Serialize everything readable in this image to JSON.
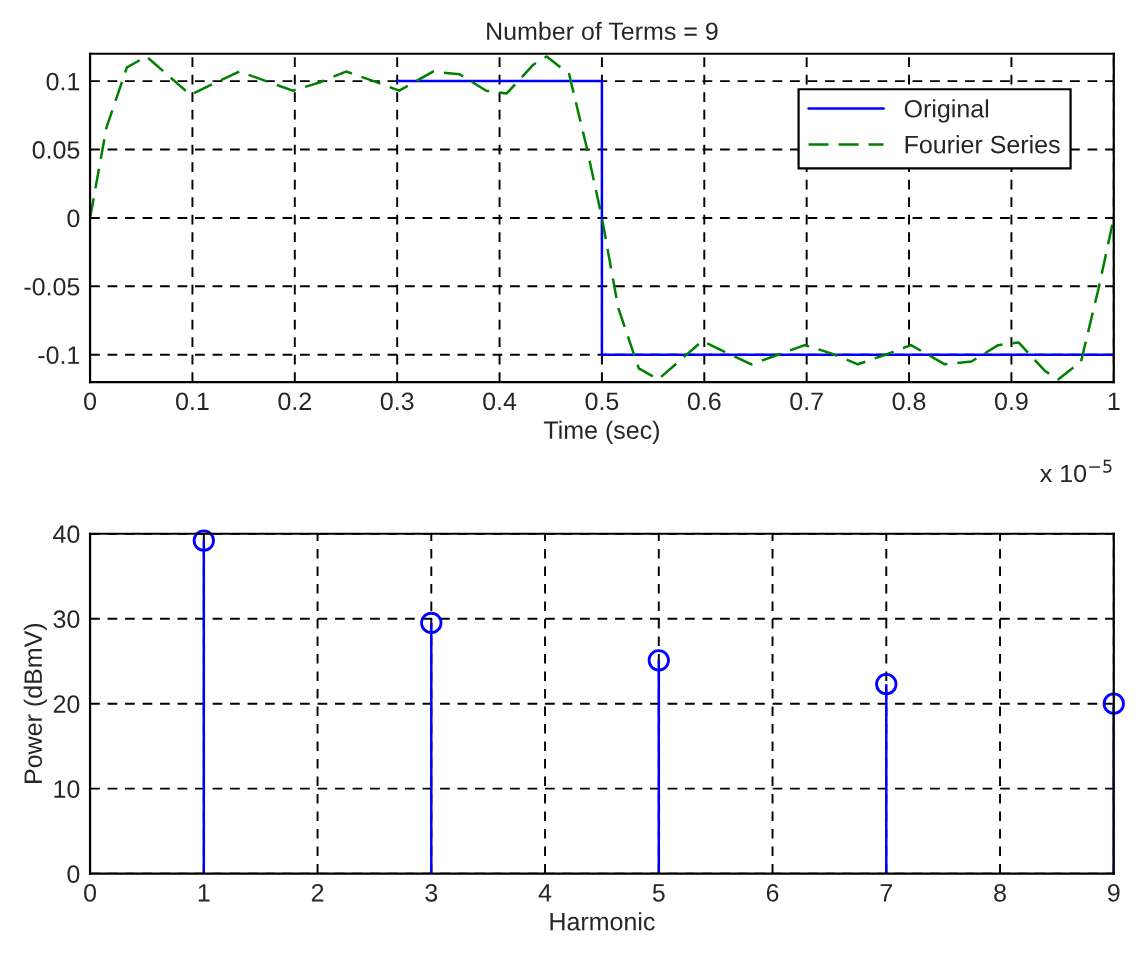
{
  "chart_data": [
    {
      "type": "line",
      "title": "Number of Terms = 9",
      "xlabel": "Time (sec)",
      "xlim": [
        0,
        1
      ],
      "xticks": [
        0,
        0.1,
        0.2,
        0.3,
        0.4,
        0.5,
        0.6,
        0.7,
        0.8,
        0.9,
        1
      ],
      "ylim": [
        -0.12,
        0.12
      ],
      "yticks": [
        -0.1,
        -0.05,
        0,
        0.05,
        0.1
      ],
      "grid": true,
      "legend": "top right",
      "annotations": [
        "x 10$^{−5}$"
      ],
      "series": [
        {
          "name": "Original",
          "color": "#0000ff",
          "line_style": "solid",
          "x": [
            0.3,
            0.5,
            0.5,
            1.0
          ],
          "values": [
            0.1,
            0.1,
            -0.1,
            -0.1
          ]
        },
        {
          "name": "Fourier Series",
          "color": "#008000",
          "line_style": "dashed",
          "x": [
            0,
            0.016,
            0.036,
            0.055,
            0.075,
            0.098,
            0.12,
            0.146,
            0.172,
            0.198,
            0.224,
            0.25,
            0.277,
            0.302,
            0.335,
            0.361,
            0.387,
            0.407,
            0.433,
            0.446,
            0.468,
            0.485,
            0.5,
            0.516,
            0.536,
            0.555,
            0.575,
            0.598,
            0.62,
            0.646,
            0.672,
            0.698,
            0.724,
            0.75,
            0.777,
            0.802,
            0.835,
            0.861,
            0.887,
            0.907,
            0.933,
            0.946,
            0.968,
            0.985,
            1.0
          ],
          "values": [
            0,
            0.066,
            0.11,
            0.118,
            0.105,
            0.09,
            0.098,
            0.107,
            0.1,
            0.093,
            0.099,
            0.107,
            0.1,
            0.093,
            0.107,
            0.105,
            0.093,
            0.091,
            0.112,
            0.118,
            0.105,
            0.052,
            0,
            -0.066,
            -0.11,
            -0.118,
            -0.105,
            -0.09,
            -0.098,
            -0.107,
            -0.1,
            -0.093,
            -0.099,
            -0.107,
            -0.1,
            -0.093,
            -0.107,
            -0.105,
            -0.093,
            -0.091,
            -0.112,
            -0.118,
            -0.105,
            -0.052,
            0
          ]
        }
      ]
    },
    {
      "type": "lollipop",
      "xlabel": "Harmonic",
      "ylabel": "Power (dBmV)",
      "xlim": [
        0,
        9
      ],
      "xticks": [
        0,
        1,
        2,
        3,
        4,
        5,
        6,
        7,
        8,
        9
      ],
      "ylim": [
        0,
        40
      ],
      "yticks": [
        0,
        10,
        20,
        30,
        40
      ],
      "grid": true,
      "marker": "circle",
      "series": [
        {
          "color": "#0000ff",
          "x": [
            1,
            3,
            5,
            7,
            9
          ],
          "values": [
            39.2,
            29.5,
            25.1,
            22.3,
            20
          ]
        }
      ]
    }
  ]
}
